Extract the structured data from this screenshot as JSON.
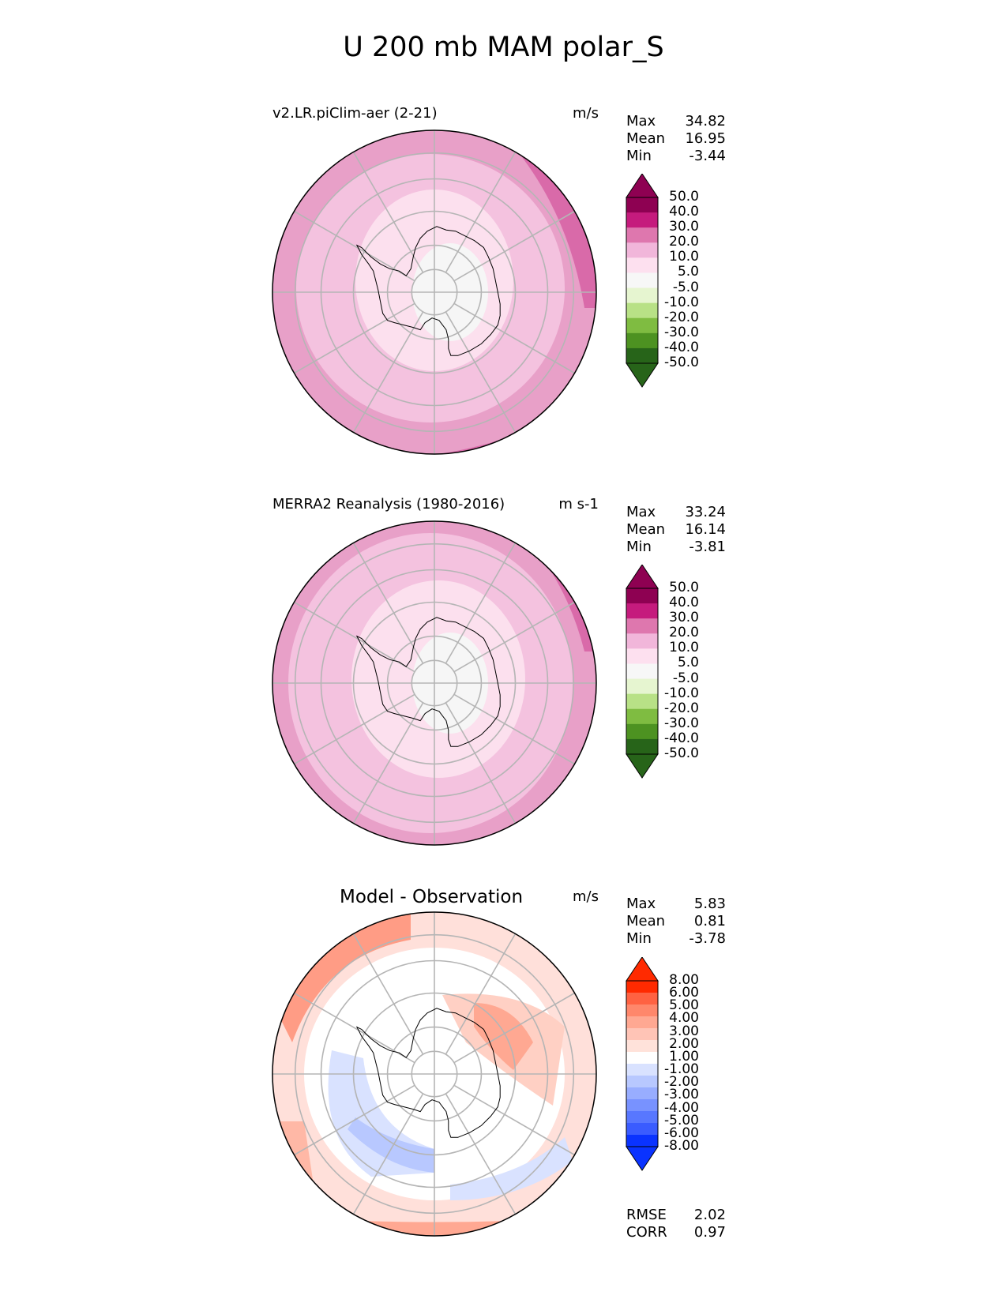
{
  "title": "U 200 mb MAM polar_S",
  "panels": [
    {
      "title": "v2.LR.piClim-aer (2-21)",
      "units": "m/s",
      "stats": [
        {
          "label": "Max",
          "value": "34.82"
        },
        {
          "label": "Mean",
          "value": "16.95"
        },
        {
          "label": "Min",
          "value": "-3.44"
        }
      ],
      "colorbar": {
        "labels": [
          "50.0",
          "40.0",
          "30.0",
          "20.0",
          "10.0",
          "5.0",
          "-5.0",
          "-10.0",
          "-20.0",
          "-30.0",
          "-40.0",
          "-50.0"
        ],
        "colors": [
          "#8e0152",
          "#c51b7d",
          "#de77ae",
          "#f1b6da",
          "#fde0ef",
          "#f7f7f7",
          "#e6f5d0",
          "#b8e186",
          "#7fbc41",
          "#4d9221",
          "#276419"
        ]
      }
    },
    {
      "title": "MERRA2 Reanalysis (1980-2016)",
      "units": "m s-1",
      "stats": [
        {
          "label": "Max",
          "value": "33.24"
        },
        {
          "label": "Mean",
          "value": "16.14"
        },
        {
          "label": "Min",
          "value": "-3.81"
        }
      ],
      "colorbar": {
        "labels": [
          "50.0",
          "40.0",
          "30.0",
          "20.0",
          "10.0",
          "5.0",
          "-5.0",
          "-10.0",
          "-20.0",
          "-30.0",
          "-40.0",
          "-50.0"
        ],
        "colors": [
          "#8e0152",
          "#c51b7d",
          "#de77ae",
          "#f1b6da",
          "#fde0ef",
          "#f7f7f7",
          "#e6f5d0",
          "#b8e186",
          "#7fbc41",
          "#4d9221",
          "#276419"
        ]
      }
    },
    {
      "title": "Model - Observation",
      "units": "m/s",
      "stats": [
        {
          "label": "Max",
          "value": "5.83"
        },
        {
          "label": "Mean",
          "value": "0.81"
        },
        {
          "label": "Min",
          "value": "-3.78"
        }
      ],
      "colorbar": {
        "labels": [
          "8.00",
          "6.00",
          "5.00",
          "4.00",
          "3.00",
          "2.00",
          "1.00",
          "-1.00",
          "-2.00",
          "-3.00",
          "-4.00",
          "-5.00",
          "-6.00",
          "-8.00"
        ],
        "colors": [
          "#ff2a00",
          "#ff6242",
          "#ff876b",
          "#ffa892",
          "#ffc4b6",
          "#ffe2da",
          "#ffffff",
          "#d9e2ff",
          "#b8c8ff",
          "#98adff",
          "#7892ff",
          "#5877ff",
          "#3a5cff",
          "#0a33ff"
        ]
      },
      "metrics": [
        {
          "label": "RMSE",
          "value": "2.02"
        },
        {
          "label": "CORR",
          "value": "0.97"
        }
      ]
    }
  ]
}
